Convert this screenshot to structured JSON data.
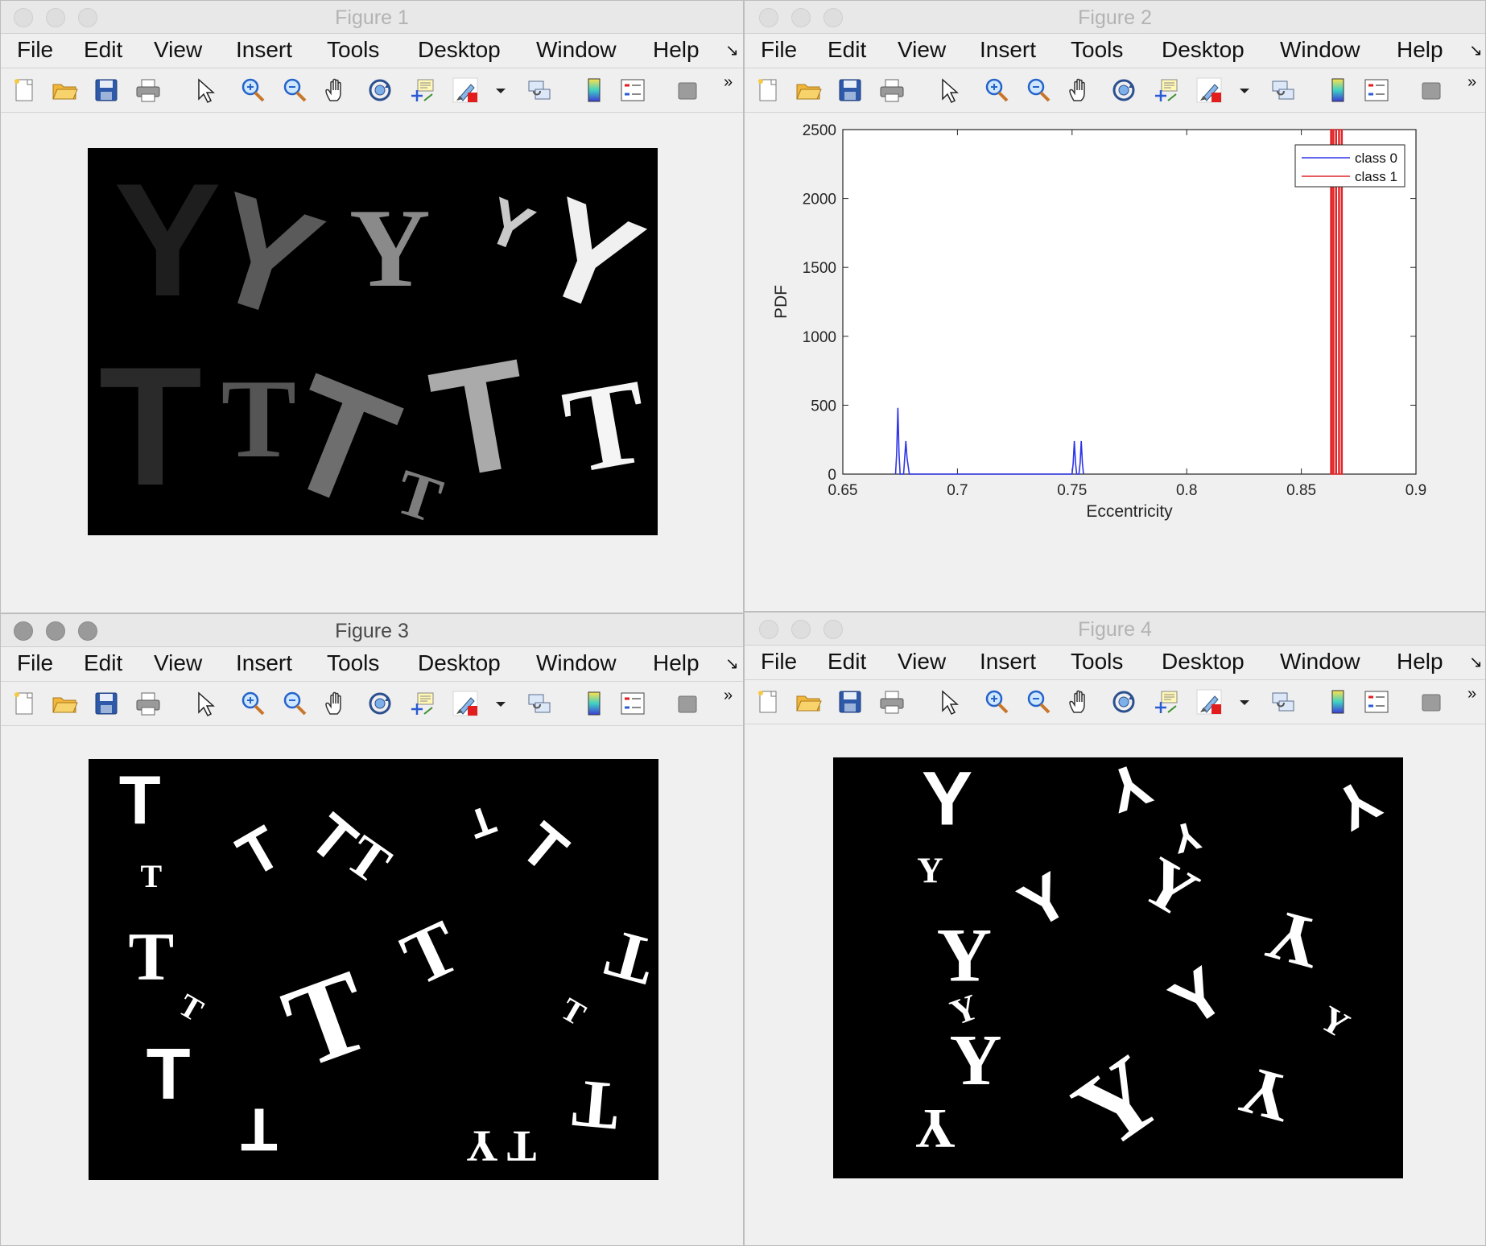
{
  "menu": [
    "File",
    "Edit",
    "View",
    "Insert",
    "Tools",
    "Desktop",
    "Window",
    "Help"
  ],
  "menu_overflow": "↘",
  "toolbar_overflow": "»",
  "toolbar_icons": [
    "new-figure-icon",
    "open-file-icon",
    "save-icon",
    "print-icon",
    "pointer-icon",
    "zoom-in-icon",
    "zoom-out-icon",
    "pan-hand-icon",
    "rotate-3d-icon",
    "data-cursor-icon",
    "brush-icon",
    "brush-dropdown-icon",
    "link-plot-icon",
    "colorbar-icon",
    "legend-icon",
    "hide-tools-icon"
  ],
  "windows": [
    {
      "title": "Figure 1",
      "active": false
    },
    {
      "title": "Figure 2",
      "active": false
    },
    {
      "title": "Figure 3",
      "active": true
    },
    {
      "title": "Figure 4",
      "active": false
    }
  ],
  "figure1": {
    "letters": [
      {
        "ch": "Y",
        "font": "sans",
        "size": 200,
        "color": "#1e1e1e",
        "x": 14,
        "y": 24,
        "rot": 0
      },
      {
        "ch": "Y",
        "font": "sans",
        "size": 190,
        "color": "#5a5a5a",
        "x": 31,
        "y": 28,
        "rot": 18
      },
      {
        "ch": "Y",
        "font": "serif",
        "size": 140,
        "color": "#8a8a8a",
        "x": 53,
        "y": 26,
        "rot": 0
      },
      {
        "ch": "Y",
        "font": "sans",
        "size": 80,
        "color": "#c9c9c9",
        "x": 74,
        "y": 20,
        "rot": 22
      },
      {
        "ch": "Y",
        "font": "sans",
        "size": 170,
        "color": "#f0f0f0",
        "x": 88,
        "y": 28,
        "rot": 22
      },
      {
        "ch": "T",
        "font": "sans",
        "size": 210,
        "color": "#2a2a2a",
        "x": 11,
        "y": 72,
        "rot": 0
      },
      {
        "ch": "T",
        "font": "serif",
        "size": 140,
        "color": "#555555",
        "x": 30,
        "y": 70,
        "rot": 0
      },
      {
        "ch": "T",
        "font": "sans",
        "size": 200,
        "color": "#6e6e6e",
        "x": 44,
        "y": 76,
        "rot": 22
      },
      {
        "ch": "T",
        "font": "serif",
        "size": 80,
        "color": "#7d7d7d",
        "x": 58,
        "y": 90,
        "rot": 18
      },
      {
        "ch": "T",
        "font": "sans",
        "size": 190,
        "color": "#aaaaaa",
        "x": 69,
        "y": 70,
        "rot": -10
      },
      {
        "ch": "T",
        "font": "serif",
        "size": 150,
        "color": "#f5f5f5",
        "x": 91,
        "y": 72,
        "rot": -10
      }
    ]
  },
  "figure2": {
    "chart_data": {
      "type": "line",
      "xlabel": "Eccentricity",
      "ylabel": "PDF",
      "xlim": [
        0.65,
        0.9
      ],
      "ylim": [
        0,
        2500
      ],
      "xticks": [
        0.65,
        0.7,
        0.75,
        0.8,
        0.85,
        0.9
      ],
      "yticks": [
        0,
        500,
        1000,
        1500,
        2000,
        2500
      ],
      "xtick_labels": [
        "0.65",
        "0.7",
        "0.75",
        "0.8",
        "0.85",
        "0.9"
      ],
      "ytick_labels": [
        "0",
        "500",
        "1000",
        "1500",
        "2000",
        "2500"
      ],
      "legend_position": "top-right",
      "series": [
        {
          "name": "class 0",
          "color": "#2f35e8",
          "x": [
            0.673,
            0.6735,
            0.674,
            0.6745,
            0.675,
            0.6765,
            0.677,
            0.6775,
            0.678,
            0.679,
            0.7,
            0.75,
            0.7505,
            0.751,
            0.7515,
            0.752,
            0.753,
            0.7535,
            0.754,
            0.7545,
            0.755
          ],
          "y": [
            0,
            150,
            480,
            150,
            0,
            0,
            120,
            240,
            120,
            0,
            0,
            0,
            80,
            240,
            80,
            0,
            0,
            80,
            240,
            80,
            0
          ]
        },
        {
          "name": "class 1",
          "color": "#e0262a",
          "x": [
            0.8625,
            0.8628,
            0.8628,
            0.8632,
            0.8632,
            0.8638,
            0.8638,
            0.8641,
            0.8641,
            0.865,
            0.865,
            0.8653,
            0.8653,
            0.8663,
            0.8663,
            0.8666,
            0.8666,
            0.8675,
            0.8675,
            0.8678,
            0.8678,
            0.8682
          ],
          "y": [
            0,
            0,
            2500,
            2500,
            0,
            0,
            2500,
            2500,
            0,
            0,
            2500,
            2500,
            0,
            0,
            2500,
            2500,
            0,
            0,
            2500,
            2500,
            0,
            0
          ]
        }
      ]
    }
  },
  "figure3": {
    "letters": [
      {
        "ch": "T",
        "font": "sans",
        "size": 85,
        "x": 9,
        "y": 10,
        "rot": 0
      },
      {
        "ch": "T",
        "font": "serif",
        "size": 40,
        "x": 11,
        "y": 28,
        "rot": 0
      },
      {
        "ch": "T",
        "font": "sans",
        "size": 75,
        "x": 30,
        "y": 22,
        "rot": -30
      },
      {
        "ch": "T",
        "font": "sans",
        "size": 75,
        "x": 43,
        "y": 19,
        "rot": 40
      },
      {
        "ch": "T",
        "font": "serif",
        "size": 70,
        "x": 49,
        "y": 24,
        "rot": 35
      },
      {
        "ch": "T",
        "font": "sans",
        "size": 50,
        "x": 69,
        "y": 15,
        "rot": 160
      },
      {
        "ch": "T",
        "font": "sans",
        "size": 75,
        "x": 80,
        "y": 21,
        "rot": 40
      },
      {
        "ch": "T",
        "font": "serif",
        "size": 85,
        "x": 11,
        "y": 47,
        "rot": 0
      },
      {
        "ch": "T",
        "font": "serif",
        "size": 40,
        "x": 18,
        "y": 59,
        "rot": 30
      },
      {
        "ch": "T",
        "font": "serif",
        "size": 95,
        "x": 60,
        "y": 46,
        "rot": -25
      },
      {
        "ch": "T",
        "font": "serif",
        "size": 145,
        "x": 42,
        "y": 62,
        "rot": -20
      },
      {
        "ch": "T",
        "font": "serif",
        "size": 85,
        "x": 95,
        "y": 47,
        "rot": 195
      },
      {
        "ch": "T",
        "font": "serif",
        "size": 40,
        "x": 85,
        "y": 60,
        "rot": 30
      },
      {
        "ch": "T",
        "font": "sans",
        "size": 90,
        "x": 14,
        "y": 75,
        "rot": 0
      },
      {
        "ch": "T",
        "font": "sans",
        "size": 75,
        "x": 30,
        "y": 88,
        "rot": 180
      },
      {
        "ch": "Y",
        "font": "serif",
        "size": 55,
        "x": 69,
        "y": 92,
        "rot": 180
      },
      {
        "ch": "T",
        "font": "serif",
        "size": 55,
        "x": 76,
        "y": 92,
        "rot": 180
      },
      {
        "ch": "T",
        "font": "serif",
        "size": 85,
        "x": 89,
        "y": 82,
        "rot": 185
      }
    ]
  },
  "figure4": {
    "letters": [
      {
        "ch": "Y",
        "font": "sans",
        "size": 95,
        "x": 20,
        "y": 10,
        "rot": 0
      },
      {
        "ch": "Y",
        "font": "sans",
        "size": 75,
        "x": 52,
        "y": 7,
        "rot": 160
      },
      {
        "ch": "Y",
        "font": "sans",
        "size": 75,
        "x": 92,
        "y": 11,
        "rot": 150
      },
      {
        "ch": "Y",
        "font": "serif",
        "size": 45,
        "x": 17,
        "y": 27,
        "rot": 0
      },
      {
        "ch": "Y",
        "font": "sans",
        "size": 50,
        "x": 62,
        "y": 19,
        "rot": 165
      },
      {
        "ch": "Y",
        "font": "serif",
        "size": 85,
        "x": 59,
        "y": 31,
        "rot": 30
      },
      {
        "ch": "Y",
        "font": "sans",
        "size": 80,
        "x": 37,
        "y": 34,
        "rot": -30
      },
      {
        "ch": "Y",
        "font": "serif",
        "size": 90,
        "x": 81,
        "y": 43,
        "rot": 195
      },
      {
        "ch": "Y",
        "font": "serif",
        "size": 95,
        "x": 23,
        "y": 47,
        "rot": 0
      },
      {
        "ch": "Y",
        "font": "sans",
        "size": 85,
        "x": 64,
        "y": 57,
        "rot": -35
      },
      {
        "ch": "Y",
        "font": "serif",
        "size": 45,
        "x": 88,
        "y": 63,
        "rot": 30
      },
      {
        "ch": "Y",
        "font": "serif",
        "size": 45,
        "x": 23,
        "y": 60,
        "rot": -20
      },
      {
        "ch": "Y",
        "font": "serif",
        "size": 90,
        "x": 25,
        "y": 72,
        "rot": 0
      },
      {
        "ch": "Y",
        "font": "serif",
        "size": 130,
        "x": 50,
        "y": 82,
        "rot": -35
      },
      {
        "ch": "Y",
        "font": "serif",
        "size": 85,
        "x": 76,
        "y": 80,
        "rot": 195
      },
      {
        "ch": "Y",
        "font": "serif",
        "size": 70,
        "x": 18,
        "y": 88,
        "rot": 180
      }
    ]
  }
}
